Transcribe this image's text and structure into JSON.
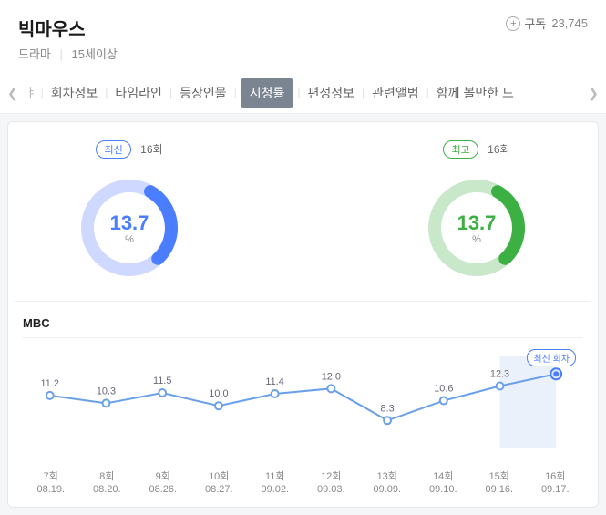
{
  "header": {
    "title": "빅마우스",
    "genre": "드라마",
    "rating": "15세이상",
    "subscribe_label": "구독",
    "subscribe_count": "23,745"
  },
  "tabs": {
    "frag": "ㅑ",
    "items": [
      "회차정보",
      "타임라인",
      "등장인물",
      "시청률",
      "편성정보",
      "관련앨범",
      "함께 볼만한 드"
    ],
    "active_index": 3
  },
  "donuts": {
    "latest": {
      "badge": "최신",
      "episode": "16회",
      "value": "13.7",
      "unit": "%",
      "color": "#4a7dff",
      "bg": "#cfd9ff",
      "pct": 30
    },
    "best": {
      "badge": "최고",
      "episode": "16회",
      "value": "13.7",
      "unit": "%",
      "color": "#3cb043",
      "bg": "#c9e8c9",
      "pct": 30
    }
  },
  "chart": {
    "broadcaster": "MBC",
    "latest_tag": "최신 회차",
    "line_color": "#6aa0e8",
    "point_fill": "#ffffff",
    "highlight_color": "#4a7dff",
    "y_min": 6,
    "y_max": 15,
    "points": [
      {
        "ep": "7회",
        "date": "08.19.",
        "v": 11.2
      },
      {
        "ep": "8회",
        "date": "08.20.",
        "v": 10.3
      },
      {
        "ep": "9회",
        "date": "08.26.",
        "v": 11.5
      },
      {
        "ep": "10회",
        "date": "08.27.",
        "v": 10.0
      },
      {
        "ep": "11회",
        "date": "09.02.",
        "v": 11.4
      },
      {
        "ep": "12회",
        "date": "09.03.",
        "v": 12.0
      },
      {
        "ep": "13회",
        "date": "09.09.",
        "v": 8.3
      },
      {
        "ep": "14회",
        "date": "09.10.",
        "v": 10.6
      },
      {
        "ep": "15회",
        "date": "09.16.",
        "v": 12.3
      },
      {
        "ep": "16회",
        "date": "09.17.",
        "v": 13.7
      }
    ]
  }
}
